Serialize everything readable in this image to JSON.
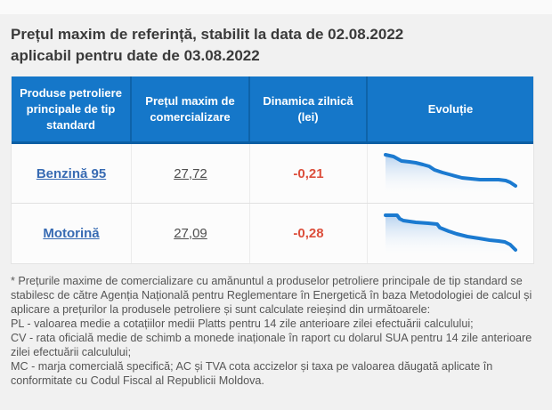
{
  "title": {
    "line1": "Prețul maxim de referință, stabilit la data de 02.08.2022",
    "line2": "aplicabil pentru date de 03.08.2022"
  },
  "table": {
    "header_bg": "#1577c9",
    "link_color": "#386bb3",
    "dynamic_color": "#dc4f3c",
    "headers": [
      "Produse petroliere principale de tip standard",
      "Prețul maxim de comercializare",
      "Dinamica zilnică (lei)",
      "Evoluție"
    ],
    "rows": [
      {
        "product": "Benzină 95",
        "price": "27,72",
        "dynamic": "-0,21",
        "evolution": {
          "type": "line",
          "line_color": "#1b7ad0",
          "fill_top": "rgba(125,175,228,0.55)",
          "fill_bottom": "rgba(245,250,255,0.05)",
          "baseline": 46,
          "points": [
            [
              2,
              3
            ],
            [
              11,
              5
            ],
            [
              20,
              10
            ],
            [
              29,
              11
            ],
            [
              36,
              12
            ],
            [
              44,
              14
            ],
            [
              51,
              16
            ],
            [
              57,
              20
            ],
            [
              66,
              23
            ],
            [
              77,
              26
            ],
            [
              88,
              29
            ],
            [
              98,
              30
            ],
            [
              108,
              31
            ],
            [
              119,
              31
            ],
            [
              129,
              31
            ],
            [
              137,
              32
            ],
            [
              142,
              34
            ],
            [
              148,
              38
            ]
          ]
        }
      },
      {
        "product": "Motorină",
        "price": "27,09",
        "dynamic": "-0,28",
        "evolution": {
          "type": "line",
          "line_color": "#1b7ad0",
          "fill_top": "rgba(125,175,228,0.55)",
          "fill_bottom": "rgba(245,250,255,0.05)",
          "baseline": 46,
          "points": [
            [
              2,
              3
            ],
            [
              15,
              3
            ],
            [
              18,
              7
            ],
            [
              22,
              9
            ],
            [
              36,
              11
            ],
            [
              50,
              12
            ],
            [
              60,
              13
            ],
            [
              63,
              17
            ],
            [
              73,
              21
            ],
            [
              82,
              24
            ],
            [
              94,
              27
            ],
            [
              107,
              29
            ],
            [
              119,
              31
            ],
            [
              129,
              32
            ],
            [
              136,
              33
            ],
            [
              142,
              36
            ],
            [
              148,
              42
            ]
          ]
        }
      }
    ]
  },
  "footnote": {
    "paragraphs": [
      "* Prețurile maxime de comercializare cu amănuntul a produselor petroliere principale de tip standard se stabilesc de către Agenția Națională pentru Reglementare în Energetică în baza Metodologiei de calcul și aplicare a prețurilor la produsele petroliere și sunt calculate reieșind din următoarele:",
      "PL - valoarea medie a cotațiilor medii Platts pentru 14 zile anterioare zilei efectuării calculului;",
      "CV - rata oficială medie de schimb a monede inaționale în raport cu dolarul SUA pentru 14 zile anterioare zilei efectuării calculului;",
      "MC - marja comercială specifică; AC și TVA cota accizelor și taxa pe valoarea dăugată aplicate în conformitate cu Codul Fiscal al Republicii Moldova."
    ]
  }
}
